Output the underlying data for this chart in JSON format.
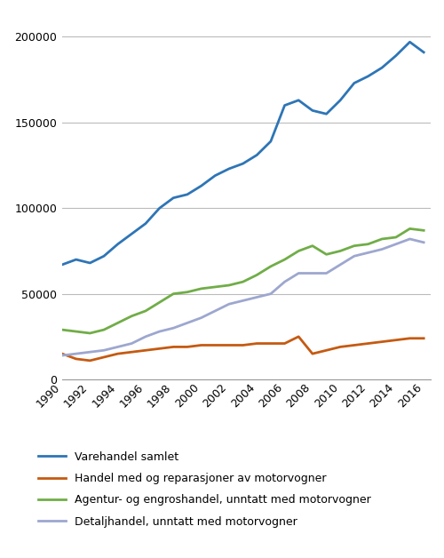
{
  "years": [
    1990,
    1991,
    1992,
    1993,
    1994,
    1995,
    1996,
    1997,
    1998,
    1999,
    2000,
    2001,
    2002,
    2003,
    2004,
    2005,
    2006,
    2007,
    2008,
    2009,
    2010,
    2011,
    2012,
    2013,
    2014,
    2015,
    2016
  ],
  "varehandel_samlet": [
    67000,
    70000,
    68000,
    72000,
    79000,
    85000,
    91000,
    100000,
    106000,
    108000,
    113000,
    119000,
    123000,
    126000,
    131000,
    139000,
    160000,
    163000,
    157000,
    155000,
    163000,
    173000,
    177000,
    182000,
    189000,
    197000,
    191000
  ],
  "handel_motorvogner": [
    15000,
    12000,
    11000,
    13000,
    15000,
    16000,
    17000,
    18000,
    19000,
    19000,
    20000,
    20000,
    20000,
    20000,
    21000,
    21000,
    21000,
    25000,
    15000,
    17000,
    19000,
    20000,
    21000,
    22000,
    23000,
    24000,
    24000
  ],
  "engroshandel": [
    29000,
    28000,
    27000,
    29000,
    33000,
    37000,
    40000,
    45000,
    50000,
    51000,
    53000,
    54000,
    55000,
    57000,
    61000,
    66000,
    70000,
    75000,
    78000,
    73000,
    75000,
    78000,
    79000,
    82000,
    83000,
    88000,
    87000
  ],
  "detaljhandel": [
    14000,
    15000,
    16000,
    17000,
    19000,
    21000,
    25000,
    28000,
    30000,
    33000,
    36000,
    40000,
    44000,
    46000,
    48000,
    50000,
    57000,
    62000,
    62000,
    62000,
    67000,
    72000,
    74000,
    76000,
    79000,
    82000,
    80000
  ],
  "colors": {
    "varehandel_samlet": "#2E75B6",
    "handel_motorvogner": "#C55A11",
    "engroshandel": "#70AD47",
    "detaljhandel": "#9DA7CF"
  },
  "legend_labels": [
    "Varehandel samlet",
    "Handel med og reparasjoner av motorvogner",
    "Agentur- og engroshandel, unntatt med motorvogner",
    "Detaljhandel, unntatt med motorvogner"
  ],
  "yticks": [
    0,
    50000,
    100000,
    150000,
    200000
  ],
  "xticks": [
    1990,
    1992,
    1994,
    1996,
    1998,
    2000,
    2002,
    2004,
    2006,
    2008,
    2010,
    2012,
    2014,
    2016
  ],
  "ylim": [
    0,
    215000
  ],
  "xlim": [
    1990,
    2016.5
  ],
  "linewidth": 2.0,
  "background_color": "#FFFFFF",
  "grid_color": "#BBBBBB"
}
